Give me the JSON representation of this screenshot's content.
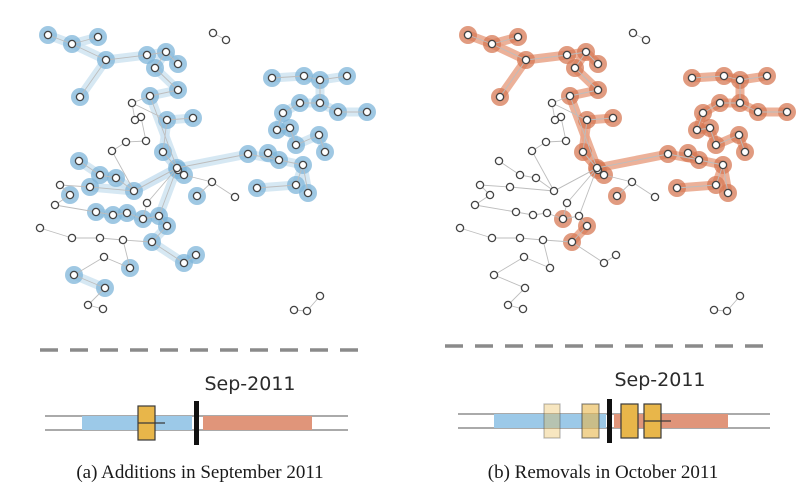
{
  "panels": [
    {
      "id": "a",
      "caption": "(a) Additions in September 2011",
      "timeline_label": "Sep-2011",
      "highlight_color": "#7fb6da",
      "highlight_fill": "#cfe4f2",
      "timeline_before_color": "#9cc9e8",
      "timeline_after_color": "#e0957a",
      "marker_color": "#e8b64a"
    },
    {
      "id": "b",
      "caption": "(b) Removals in October 2011",
      "timeline_label": "Sep-2011",
      "highlight_color": "#d77a55",
      "highlight_fill": "#e9a488",
      "timeline_before_color": "#9cc9e8",
      "timeline_after_color": "#e0957a",
      "marker_color": "#e8b64a"
    }
  ]
}
